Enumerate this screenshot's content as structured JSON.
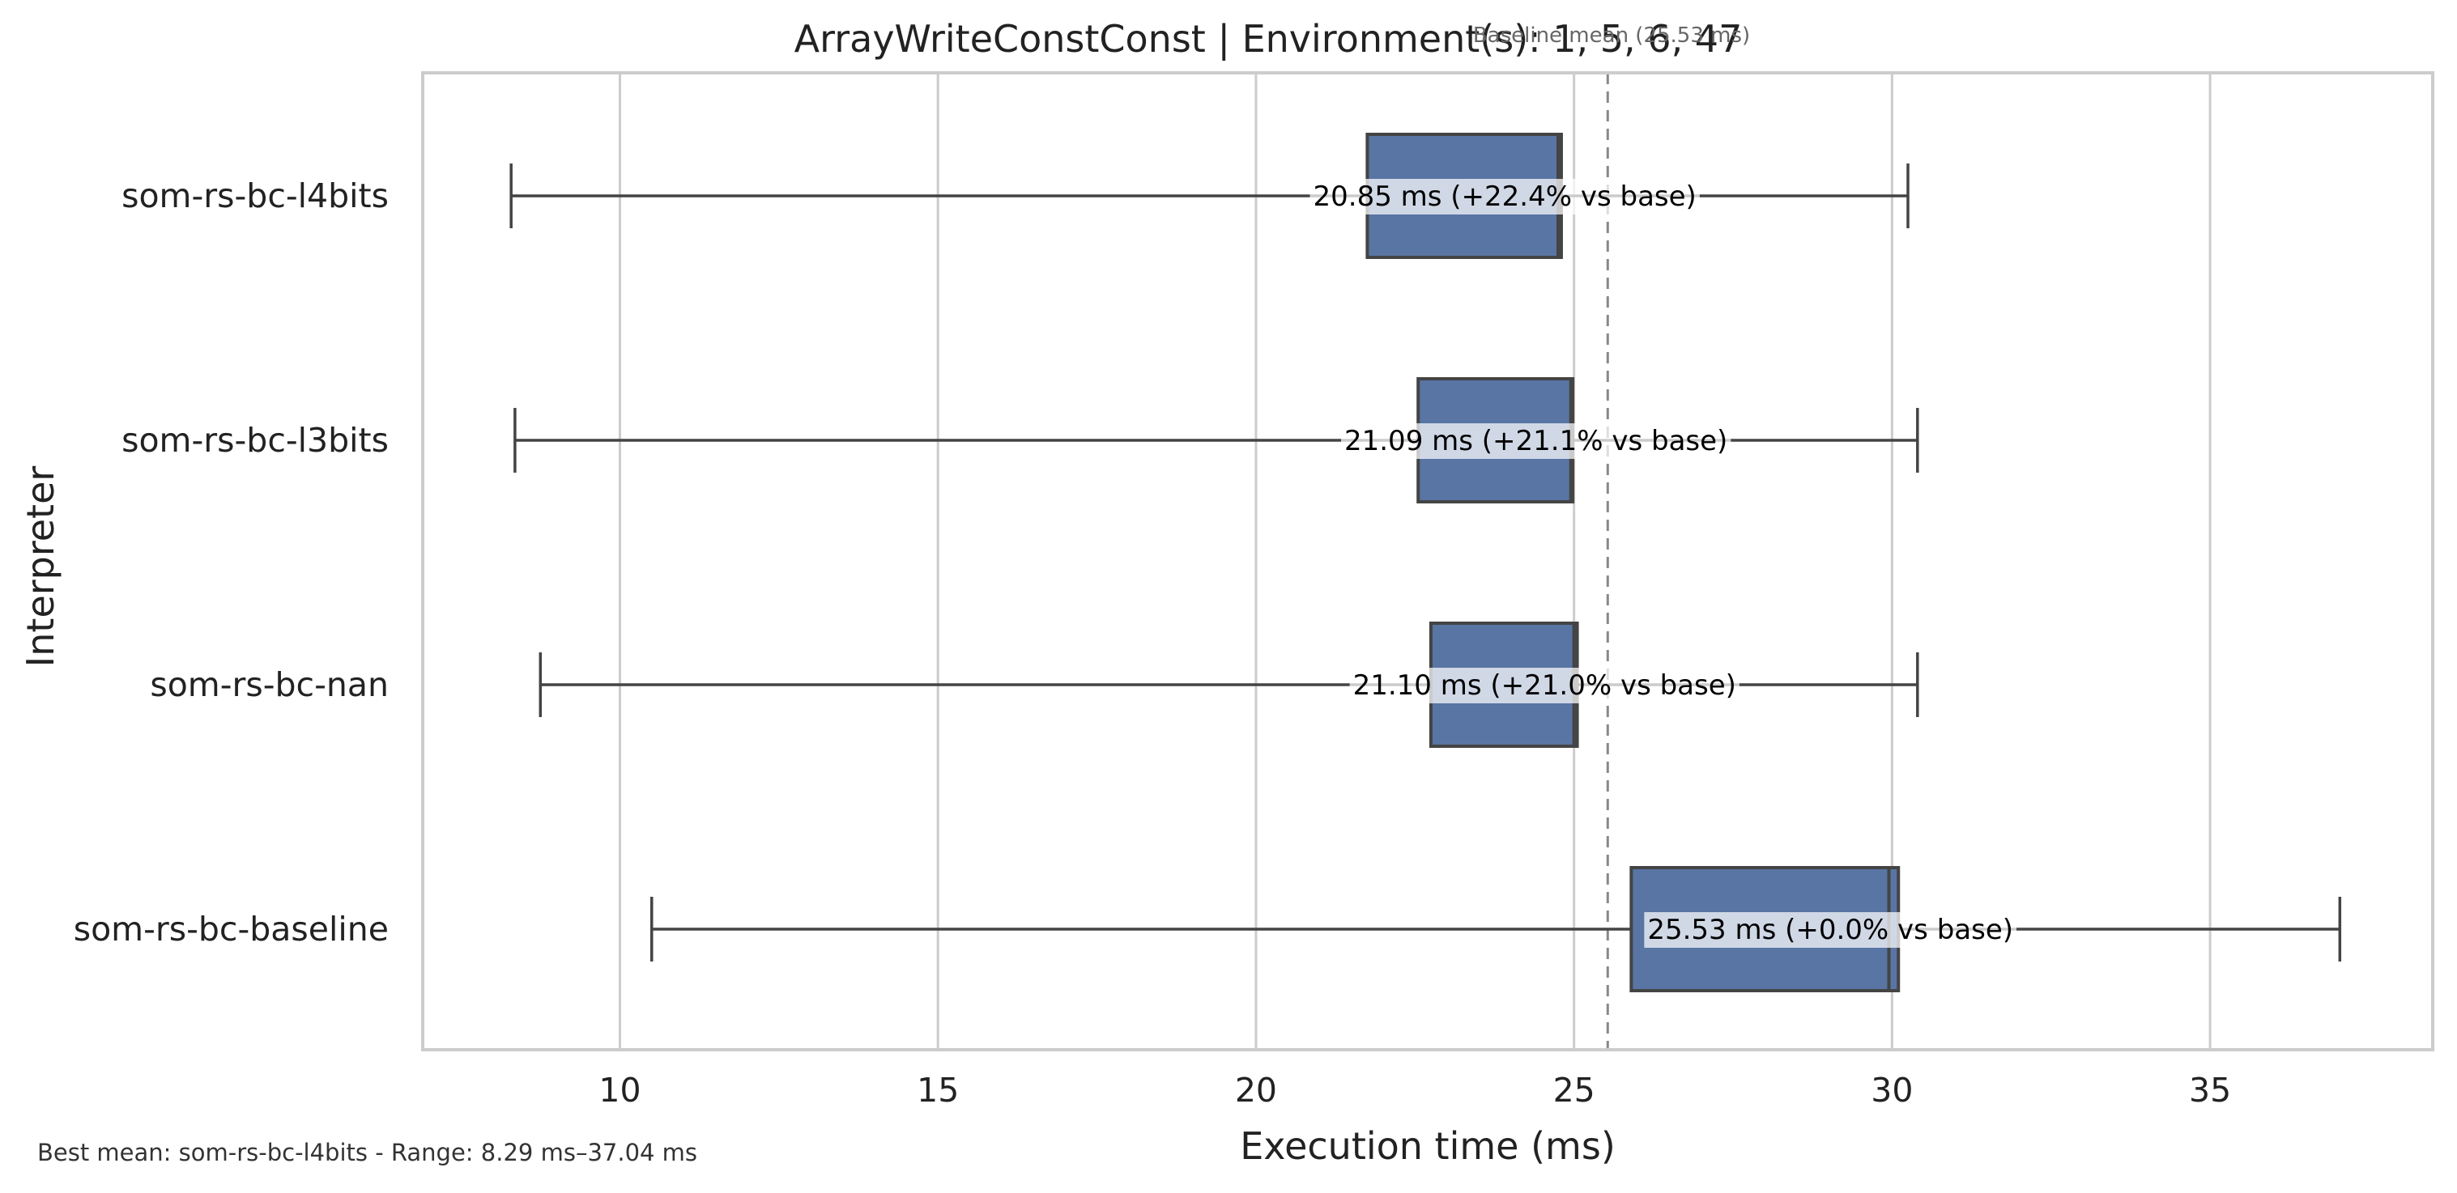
{
  "chart_data": {
    "type": "box",
    "title": "ArrayWriteConstConst | Environment(s): 1, 5, 6, 47",
    "baseline_note": "Baseline mean (25.53 ms)",
    "baseline_mean": 25.53,
    "xlabel": "Execution time (ms)",
    "ylabel": "Interpreter",
    "xlim": [
      6.9,
      38.5
    ],
    "xticks": [
      10,
      15,
      20,
      25,
      30,
      35
    ],
    "grid": "vertical",
    "box_color": "#5875a4",
    "categories": [
      "som-rs-bc-l4bits",
      "som-rs-bc-l3bits",
      "som-rs-bc-nan",
      "som-rs-bc-baseline"
    ],
    "series": [
      {
        "label": "som-rs-bc-l4bits",
        "min": 8.29,
        "q1": 21.75,
        "median": 24.75,
        "q3": 24.8,
        "max": 30.25,
        "label_text": "20.85 ms  (+22.4% vs base)"
      },
      {
        "label": "som-rs-bc-l3bits",
        "min": 8.35,
        "q1": 22.55,
        "median": 24.95,
        "q3": 24.98,
        "max": 30.4,
        "label_text": "21.09 ms  (+21.1% vs base)"
      },
      {
        "label": "som-rs-bc-nan",
        "min": 8.75,
        "q1": 22.75,
        "median": 25.0,
        "q3": 25.05,
        "max": 30.4,
        "label_text": "21.10 ms  (+21.0% vs base)"
      },
      {
        "label": "som-rs-bc-baseline",
        "min": 10.5,
        "q1": 25.9,
        "median": 29.95,
        "q3": 30.1,
        "max": 37.04,
        "label_text": "25.53 ms  (+0.0% vs base)"
      }
    ]
  },
  "footer": "Best mean: som-rs-bc-l4bits - Range: 8.29 ms–37.04 ms"
}
